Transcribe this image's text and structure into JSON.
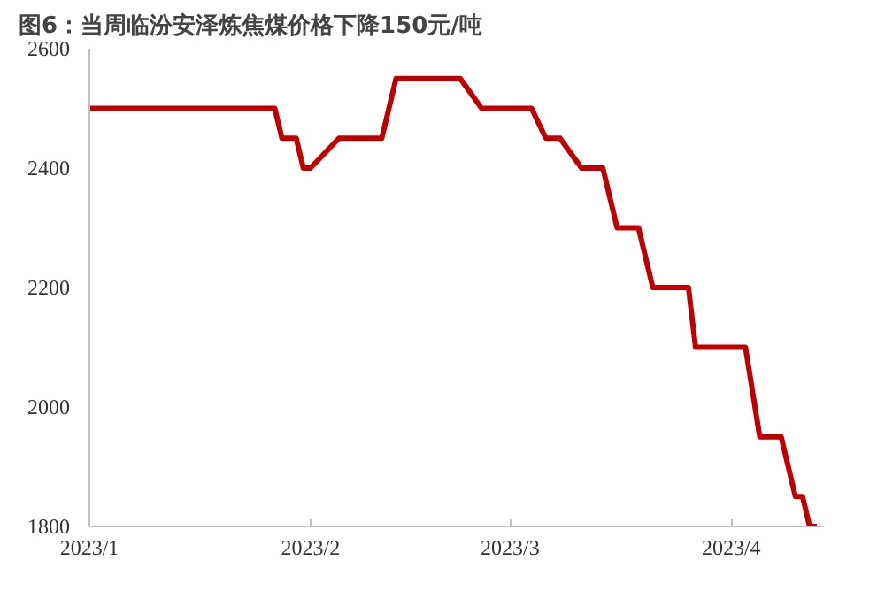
{
  "chart_data": {
    "type": "line",
    "title": "图6：当周临汾安泽炼焦煤价格下降150元/吨",
    "x": [
      "2023-01-01",
      "2023-01-27",
      "2023-01-28",
      "2023-01-30",
      "2023-01-31",
      "2023-02-01",
      "2023-02-05",
      "2023-02-11",
      "2023-02-13",
      "2023-02-22",
      "2023-02-25",
      "2023-03-04",
      "2023-03-06",
      "2023-03-08",
      "2023-03-11",
      "2023-03-14",
      "2023-03-16",
      "2023-03-19",
      "2023-03-21",
      "2023-03-26",
      "2023-03-27",
      "2023-04-03",
      "2023-04-05",
      "2023-04-08",
      "2023-04-10",
      "2023-04-11",
      "2023-04-12",
      "2023-04-13"
    ],
    "series": [
      {
        "color": "#c00000",
        "values": [
          2500,
          2500,
          2450,
          2450,
          2400,
          2400,
          2450,
          2450,
          2550,
          2550,
          2500,
          2500,
          2450,
          2450,
          2400,
          2400,
          2300,
          2300,
          2200,
          2200,
          2100,
          2100,
          1950,
          1950,
          1850,
          1850,
          1800,
          1800
        ]
      }
    ],
    "xlim": [
      "2023-01-01",
      "2023-04-14"
    ],
    "xticks": [
      {
        "value": "2023-01-01",
        "label": "2023/1"
      },
      {
        "value": "2023-02-01",
        "label": "2023/2"
      },
      {
        "value": "2023-03-01",
        "label": "2023/3"
      },
      {
        "value": "2023-04-01",
        "label": "2023/4"
      }
    ],
    "ylim": [
      1800,
      2600
    ],
    "yticks": [
      1800,
      2000,
      2200,
      2400,
      2600
    ],
    "grid": false,
    "marker": "none",
    "line_style": "solid"
  }
}
